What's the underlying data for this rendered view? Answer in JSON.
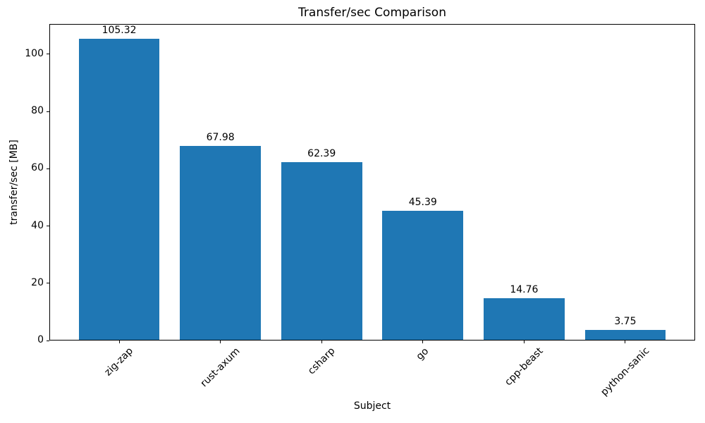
{
  "chart_data": {
    "type": "bar",
    "title": "Transfer/sec Comparison",
    "xlabel": "Subject",
    "ylabel": "transfer/sec [MB]",
    "categories": [
      "zig-zap",
      "rust-axum",
      "csharp",
      "go",
      "cpp-beast",
      "python-sanic"
    ],
    "values": [
      105.32,
      67.98,
      62.39,
      45.39,
      14.76,
      3.75
    ],
    "value_labels": [
      "105.32",
      "67.98",
      "62.39",
      "45.39",
      "14.76",
      "3.75"
    ],
    "yticks": [
      0,
      20,
      40,
      60,
      80,
      100
    ],
    "ylim": [
      0,
      110.59
    ],
    "xlim": [
      -0.69,
      5.69
    ],
    "bar_width_fraction": 0.8,
    "bar_color": "#1f77b4",
    "axis_color": "#000000",
    "text_color": "#000000",
    "xtick_rotation_deg": 45,
    "grid": false,
    "legend_position": "none"
  }
}
